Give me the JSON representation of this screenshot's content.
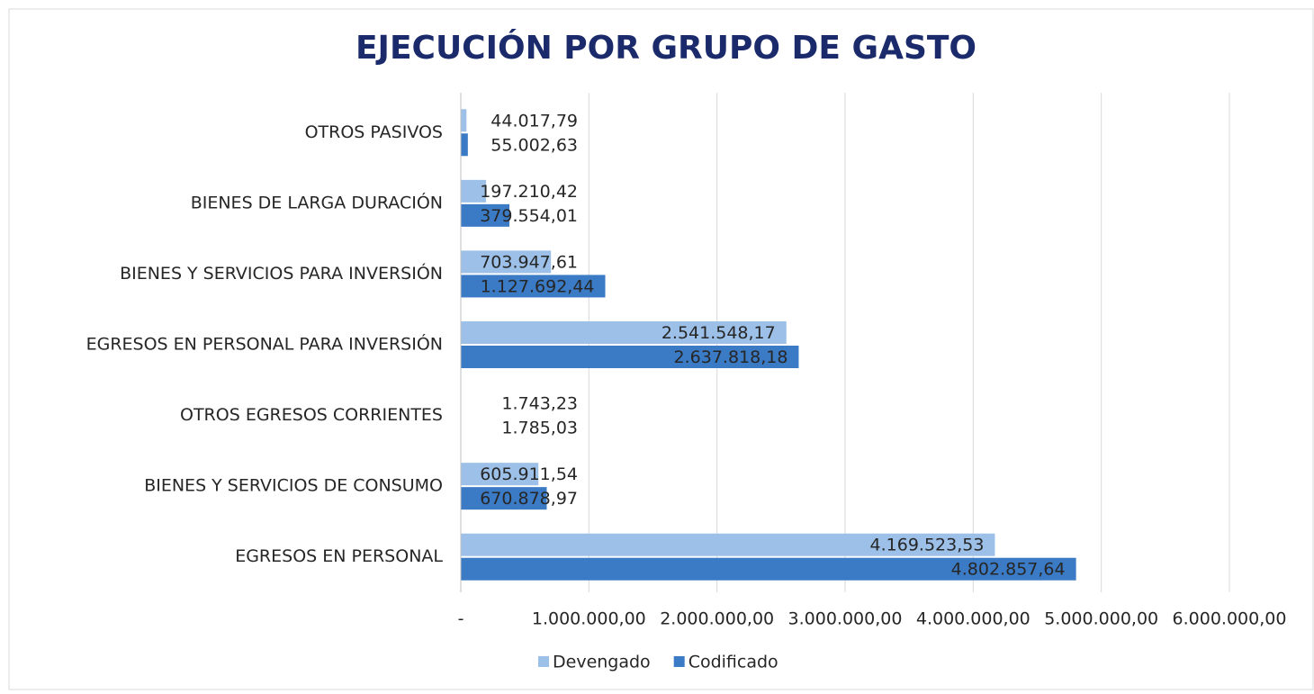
{
  "chart_data": {
    "type": "hbar",
    "title": "EJECUCIÓN POR GRUPO DE GASTO",
    "categories": [
      "OTROS PASIVOS",
      "BIENES DE LARGA DURACIÓN",
      "BIENES Y SERVICIOS PARA INVERSIÓN",
      "EGRESOS EN PERSONAL PARA INVERSIÓN",
      "OTROS EGRESOS CORRIENTES",
      "BIENES Y SERVICIOS DE CONSUMO",
      "EGRESOS EN PERSONAL"
    ],
    "series": [
      {
        "name": "Devengado",
        "color": "#9cc0e8",
        "values": [
          44017.79,
          197210.42,
          703947.61,
          2541548.17,
          1743.23,
          605911.54,
          4169523.53
        ],
        "value_labels": [
          "44.017,79",
          "197.210,42",
          "703.947,61",
          "2.541.548,17",
          "1.743,23",
          "605.911,54",
          "4.169.523,53"
        ]
      },
      {
        "name": "Codificado",
        "color": "#3b7ac4",
        "values": [
          55002.63,
          379554.01,
          1127692.44,
          2637818.18,
          1785.03,
          670878.97,
          4802857.64
        ],
        "value_labels": [
          "55.002,63",
          "379.554,01",
          "1.127.692,44",
          "2.637.818,18",
          "1.785,03",
          "670.878,97",
          "4.802.857,64"
        ]
      }
    ],
    "xlim": [
      0,
      6000000
    ],
    "xticks": [
      {
        "value": 0,
        "label": "-"
      },
      {
        "value": 1000000,
        "label": "1.000.000,00"
      },
      {
        "value": 2000000,
        "label": "2.000.000,00"
      },
      {
        "value": 3000000,
        "label": "3.000.000,00"
      },
      {
        "value": 4000000,
        "label": "4.000.000,00"
      },
      {
        "value": 5000000,
        "label": "5.000.000,00"
      },
      {
        "value": 6000000,
        "label": "6.000.000,00"
      }
    ],
    "grid": true,
    "legend": "bottom"
  }
}
